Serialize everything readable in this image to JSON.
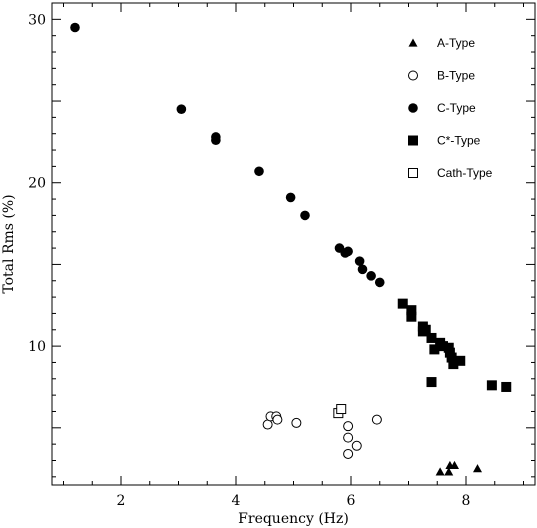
{
  "chart_data": {
    "type": "scatter",
    "xlabel": "Frequency (Hz)",
    "ylabel": "Total Rms (%)",
    "xlim": [
      0.8,
      9.2
    ],
    "ylim": [
      1.5,
      31.0
    ],
    "xticks": [
      2,
      4,
      6,
      8
    ],
    "yticks": [
      10,
      20,
      30
    ],
    "legend_position": "top-right",
    "series": [
      {
        "name": "A-Type",
        "marker": "triangle-filled",
        "points": [
          [
            7.55,
            2.3
          ],
          [
            7.7,
            2.3
          ],
          [
            7.72,
            2.7
          ],
          [
            7.8,
            2.7
          ],
          [
            8.2,
            2.5
          ]
        ]
      },
      {
        "name": "B-Type",
        "marker": "circle-open",
        "points": [
          [
            4.55,
            5.2
          ],
          [
            4.6,
            5.7
          ],
          [
            4.7,
            5.7
          ],
          [
            4.72,
            5.5
          ],
          [
            5.05,
            5.3
          ],
          [
            5.95,
            5.1
          ],
          [
            5.95,
            4.4
          ],
          [
            5.95,
            3.4
          ],
          [
            6.1,
            3.9
          ],
          [
            6.45,
            5.5
          ]
        ]
      },
      {
        "name": "C-Type",
        "marker": "circle-filled",
        "points": [
          [
            1.2,
            29.5
          ],
          [
            3.05,
            24.5
          ],
          [
            3.65,
            22.8
          ],
          [
            3.65,
            22.6
          ],
          [
            4.4,
            20.7
          ],
          [
            4.95,
            19.1
          ],
          [
            5.2,
            18.0
          ],
          [
            5.8,
            16.0
          ],
          [
            5.9,
            15.7
          ],
          [
            5.95,
            15.8
          ],
          [
            6.15,
            15.2
          ],
          [
            6.2,
            14.7
          ],
          [
            6.35,
            14.3
          ],
          [
            6.5,
            13.9
          ]
        ]
      },
      {
        "name": "C*-Type",
        "marker": "square-filled",
        "points": [
          [
            6.9,
            12.6
          ],
          [
            7.05,
            12.2
          ],
          [
            7.05,
            11.8
          ],
          [
            7.25,
            11.2
          ],
          [
            7.25,
            10.9
          ],
          [
            7.3,
            11.0
          ],
          [
            7.4,
            10.5
          ],
          [
            7.45,
            9.8
          ],
          [
            7.55,
            10.2
          ],
          [
            7.6,
            10.0
          ],
          [
            7.7,
            9.9
          ],
          [
            7.72,
            9.6
          ],
          [
            7.75,
            9.3
          ],
          [
            7.78,
            8.9
          ],
          [
            7.9,
            9.1
          ],
          [
            7.4,
            7.8
          ],
          [
            8.45,
            7.6
          ],
          [
            8.7,
            7.5
          ]
        ]
      },
      {
        "name": "Cath-Type",
        "marker": "square-open",
        "points": [
          [
            5.78,
            5.9
          ],
          [
            5.83,
            6.15
          ]
        ]
      }
    ]
  }
}
